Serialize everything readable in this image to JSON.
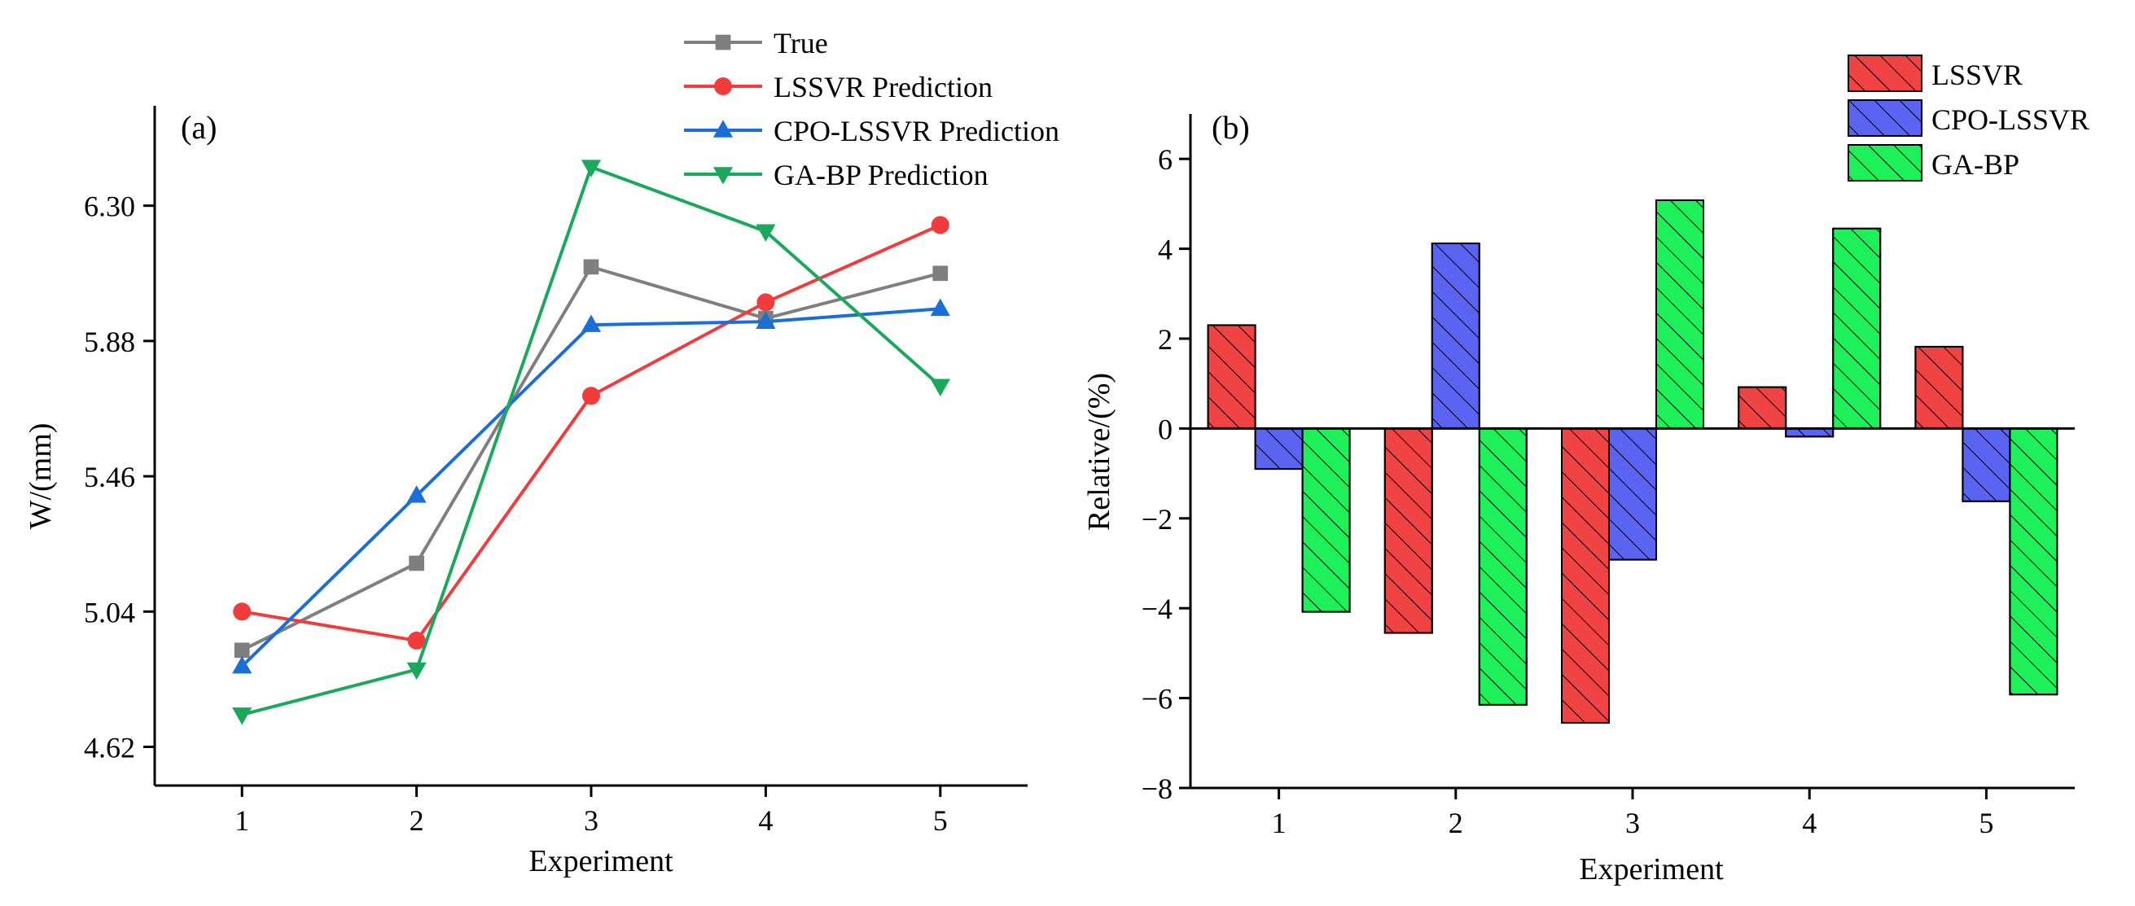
{
  "chart_data": [
    {
      "type": "line",
      "panel_label": "(a)",
      "xlabel": "Experiment",
      "ylabel": "W/(mm)",
      "x": [
        1,
        2,
        3,
        4,
        5
      ],
      "x_ticks": [
        "1",
        "2",
        "3",
        "4",
        "5"
      ],
      "xlim": [
        0.5,
        5.5
      ],
      "ylim": [
        4.5,
        6.61
      ],
      "y_ticks": [
        "4.62",
        "5.04",
        "5.46",
        "5.88",
        "6.30"
      ],
      "y_tick_values": [
        4.62,
        5.04,
        5.46,
        5.88,
        6.3
      ],
      "legend_position": "top-center, outside",
      "series": [
        {
          "name": "True",
          "marker": "square",
          "color": "#7f7f7f",
          "values": [
            4.92,
            5.19,
            6.11,
            5.95,
            6.09
          ]
        },
        {
          "name": "LSSVR Prediction",
          "marker": "circle",
          "color": "#f03c3c",
          "values": [
            5.04,
            4.95,
            5.71,
            6.0,
            6.24
          ]
        },
        {
          "name": "CPO-LSSVR Prediction",
          "marker": "triangle-up",
          "color": "#1a6fd6",
          "values": [
            4.87,
            5.4,
            5.93,
            5.94,
            5.98
          ]
        },
        {
          "name": "GA-BP Prediction",
          "marker": "triangle-down",
          "color": "#19a85c",
          "values": [
            4.72,
            4.86,
            6.42,
            6.22,
            5.74
          ]
        }
      ]
    },
    {
      "type": "bar",
      "panel_label": "(b)",
      "xlabel": "Experiment",
      "ylabel": "Relative/(%)",
      "categories": [
        "1",
        "2",
        "3",
        "4",
        "5"
      ],
      "ylim": [
        -8,
        7
      ],
      "y_ticks": [
        "−8",
        "−6",
        "−4",
        "−2",
        "0",
        "2",
        "4",
        "6"
      ],
      "y_tick_values": [
        -8,
        -6,
        -4,
        -2,
        0,
        2,
        4,
        6
      ],
      "hatch": "diagonal",
      "legend_position": "top-right",
      "series": [
        {
          "name": "LSSVR",
          "color": "#f04343",
          "values": [
            2.3,
            -4.55,
            -6.55,
            0.92,
            1.82
          ]
        },
        {
          "name": "CPO-LSSVR",
          "color": "#5a64f0",
          "values": [
            -0.9,
            4.12,
            -2.92,
            -0.18,
            -1.62
          ]
        },
        {
          "name": "GA-BP",
          "color": "#1ef05a",
          "values": [
            -4.08,
            -6.15,
            5.08,
            4.45,
            -5.92
          ]
        }
      ]
    }
  ]
}
